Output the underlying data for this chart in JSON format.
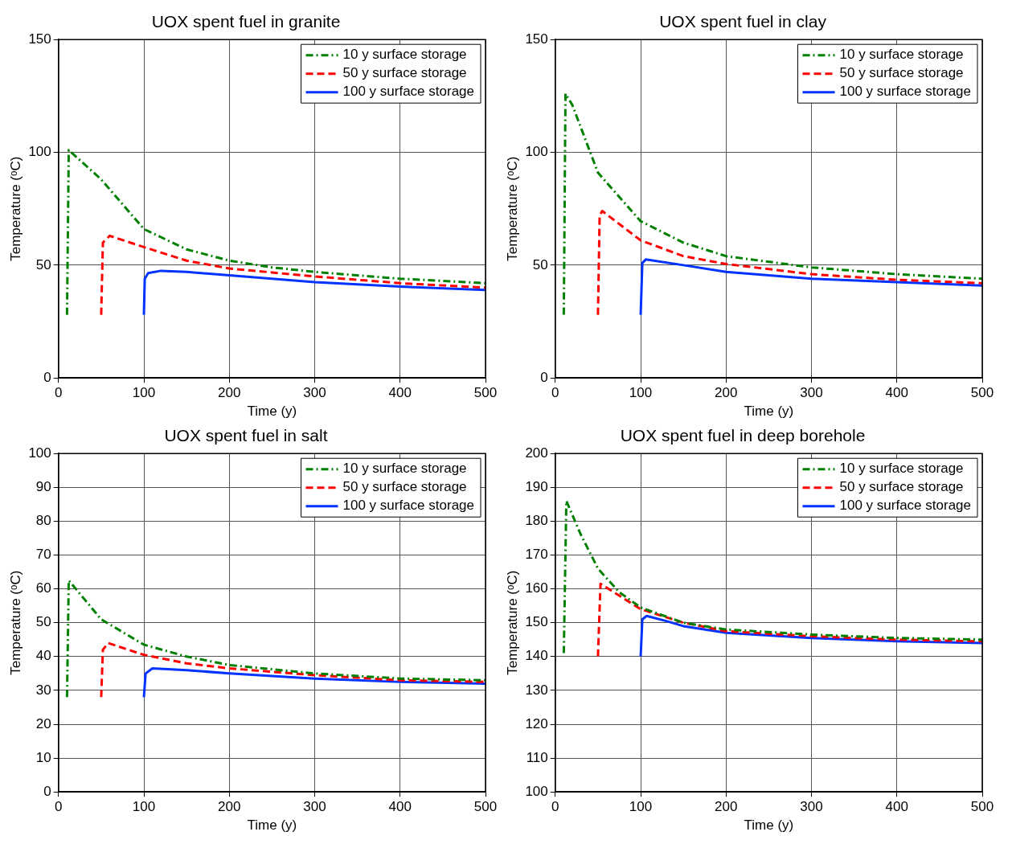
{
  "chart_data": [
    {
      "type": "line",
      "title": "UOX spent fuel in granite",
      "xlabel": "Time (y)",
      "ylabel": "Temperature (ᵒC)",
      "xlim": [
        0,
        500
      ],
      "xticks": [
        0,
        100,
        200,
        300,
        400,
        500
      ],
      "ylim": [
        0,
        150
      ],
      "yticks": [
        0,
        50,
        100,
        150
      ],
      "grid": true,
      "legend": "top right",
      "series": [
        {
          "name": "10 y surface storage",
          "color": "#008000",
          "line_style": "dashdot",
          "x": [
            10,
            12,
            50,
            100,
            150,
            200,
            250,
            300,
            400,
            500
          ],
          "values": [
            28,
            101,
            88,
            66,
            57,
            52,
            49,
            47,
            44,
            42
          ]
        },
        {
          "name": "50 y surface storage",
          "color": "#ff0000",
          "line_style": "dashed",
          "x": [
            50,
            52,
            60,
            100,
            150,
            200,
            300,
            400,
            500
          ],
          "values": [
            28,
            60,
            63,
            58,
            52,
            48.5,
            45,
            42,
            40
          ]
        },
        {
          "name": "100 y surface storage",
          "color": "#0033ff",
          "line_style": "solid",
          "x": [
            100,
            101,
            105,
            120,
            150,
            200,
            300,
            400,
            500
          ],
          "values": [
            28,
            44,
            46.5,
            47.5,
            47,
            45.5,
            42.5,
            40.5,
            39
          ]
        }
      ]
    },
    {
      "type": "line",
      "title": "UOX spent fuel in clay",
      "xlabel": "Time (y)",
      "ylabel": "Temperature (ᵒC)",
      "xlim": [
        0,
        500
      ],
      "xticks": [
        0,
        100,
        200,
        300,
        400,
        500
      ],
      "ylim": [
        0,
        150
      ],
      "yticks": [
        0,
        50,
        100,
        150
      ],
      "grid": true,
      "legend": "top right",
      "series": [
        {
          "name": "10 y surface storage",
          "color": "#008000",
          "line_style": "dashdot",
          "x": [
            10,
            12,
            20,
            50,
            100,
            150,
            200,
            300,
            400,
            500
          ],
          "values": [
            28,
            126,
            121,
            91,
            69.5,
            60,
            54,
            49,
            46,
            44
          ]
        },
        {
          "name": "50 y surface storage",
          "color": "#ff0000",
          "line_style": "dashed",
          "x": [
            50,
            52,
            55,
            100,
            150,
            200,
            300,
            400,
            500
          ],
          "values": [
            28,
            72,
            74,
            61,
            54,
            50.5,
            46,
            43.5,
            42
          ]
        },
        {
          "name": "100 y surface storage",
          "color": "#0033ff",
          "line_style": "solid",
          "x": [
            100,
            102,
            106,
            150,
            200,
            300,
            400,
            500
          ],
          "values": [
            28,
            51,
            52.5,
            50,
            47,
            44,
            42.5,
            41
          ]
        }
      ]
    },
    {
      "type": "line",
      "title": "UOX spent fuel in salt",
      "xlabel": "Time (y)",
      "ylabel": "Temperature (ᵒC)",
      "xlim": [
        0,
        500
      ],
      "xticks": [
        0,
        100,
        200,
        300,
        400,
        500
      ],
      "ylim": [
        0,
        100
      ],
      "yticks": [
        0,
        10,
        20,
        30,
        40,
        50,
        60,
        70,
        80,
        90,
        100
      ],
      "grid": true,
      "legend": "top right",
      "series": [
        {
          "name": "10 y surface storage",
          "color": "#008000",
          "line_style": "dashdot",
          "x": [
            10,
            12,
            50,
            100,
            150,
            200,
            300,
            400,
            500
          ],
          "values": [
            28,
            62.5,
            51,
            43.5,
            40,
            37.5,
            35,
            33.5,
            33
          ]
        },
        {
          "name": "50 y surface storage",
          "color": "#ff0000",
          "line_style": "dashed",
          "x": [
            50,
            52,
            58,
            100,
            150,
            200,
            300,
            400,
            500
          ],
          "values": [
            28,
            42,
            44,
            40.5,
            38,
            36.5,
            34.5,
            33,
            32.5
          ]
        },
        {
          "name": "100 y surface storage",
          "color": "#0033ff",
          "line_style": "solid",
          "x": [
            100,
            102,
            110,
            150,
            200,
            300,
            400,
            500
          ],
          "values": [
            28,
            35,
            36.5,
            36,
            35,
            33.5,
            32.5,
            32
          ]
        }
      ]
    },
    {
      "type": "line",
      "title": "UOX spent fuel in deep borehole",
      "xlabel": "Time (y)",
      "ylabel": "Temperature (ᵒC)",
      "xlim": [
        0,
        500
      ],
      "xticks": [
        0,
        100,
        200,
        300,
        400,
        500
      ],
      "ylim": [
        100,
        200
      ],
      "yticks": [
        100,
        110,
        120,
        130,
        140,
        150,
        160,
        170,
        180,
        190,
        200
      ],
      "grid": true,
      "legend": "top right",
      "series": [
        {
          "name": "10 y surface storage",
          "color": "#008000",
          "line_style": "dashdot",
          "x": [
            10,
            13,
            30,
            50,
            75,
            100,
            150,
            200,
            300,
            400,
            500
          ],
          "values": [
            141,
            186,
            176,
            166,
            159,
            154.5,
            150,
            148,
            146.5,
            145.5,
            145
          ]
        },
        {
          "name": "50 y surface storage",
          "color": "#ff0000",
          "line_style": "dashed",
          "x": [
            50,
            53,
            75,
            100,
            150,
            200,
            300,
            400,
            500
          ],
          "values": [
            140,
            161.5,
            158,
            154,
            150,
            147.5,
            146,
            145,
            144.5
          ]
        },
        {
          "name": "100 y surface storage",
          "color": "#0033ff",
          "line_style": "solid",
          "x": [
            100,
            102,
            107,
            130,
            150,
            200,
            300,
            400,
            500
          ],
          "values": [
            140,
            151,
            152,
            150.5,
            149,
            147,
            145.5,
            144.5,
            144
          ]
        }
      ]
    }
  ]
}
